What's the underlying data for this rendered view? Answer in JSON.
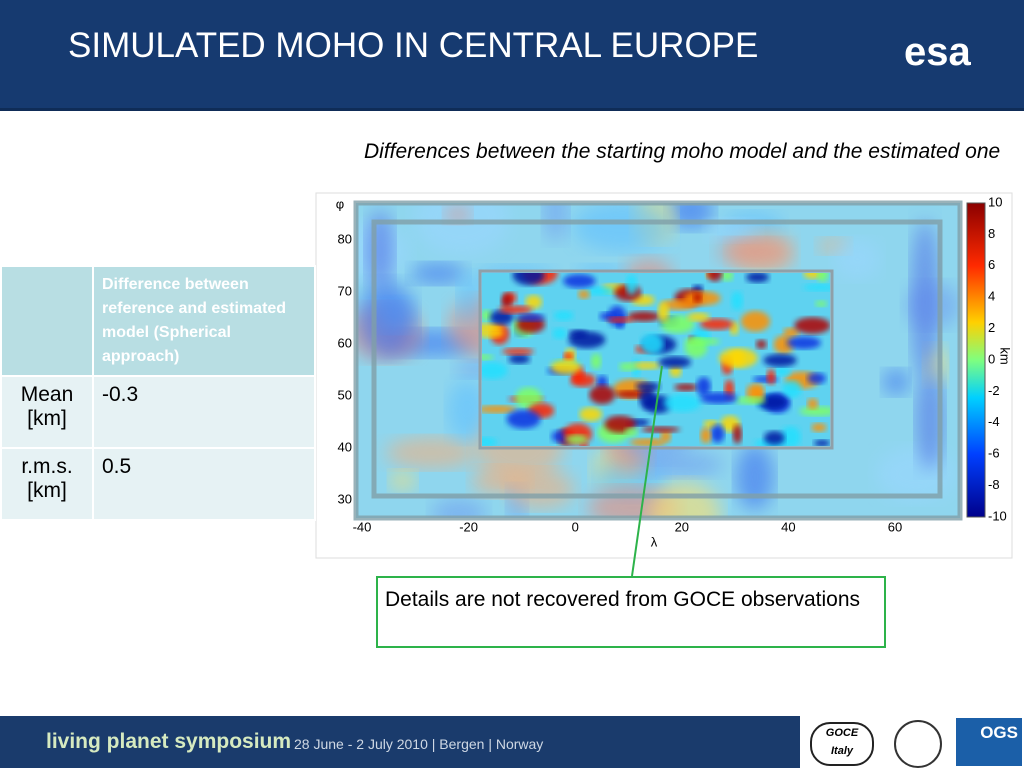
{
  "header": {
    "title": "SIMULATED MOHO IN CENTRAL EUROPE",
    "logo": "esa"
  },
  "figure": {
    "caption": "Differences between the starting moho model and the estimated one",
    "x_label": "λ",
    "y_label": "φ",
    "x_ticks": [
      -40,
      -20,
      0,
      20,
      40,
      60
    ],
    "y_ticks": [
      80,
      70,
      60,
      50,
      40,
      30
    ],
    "colorbar_ticks": [
      10,
      8,
      6,
      4,
      2,
      0,
      -2,
      -4,
      -6,
      -8,
      -10
    ],
    "colorbar_label": "km"
  },
  "table": {
    "header": [
      "Difference between reference and estimated model (Spherical approach)"
    ],
    "rows": [
      [
        "Mean [km]",
        "-0.3"
      ],
      [
        "r.m.s. [km]",
        "0.5"
      ]
    ]
  },
  "annotation": "Details are not recovered from GOCE observations",
  "footer": {
    "event": "living planet symposium",
    "dates": "28 June - 2 July 2010 | Bergen | Norway",
    "logos": [
      "GOCE",
      "Italy",
      "OGS"
    ]
  }
}
